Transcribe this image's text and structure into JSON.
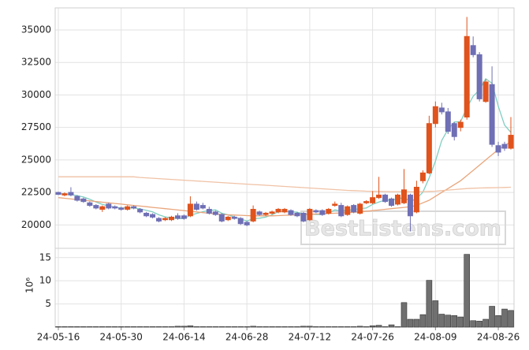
{
  "chart_data": {
    "type": "candlestick",
    "categories": [
      "24-05-16",
      null,
      null,
      null,
      null,
      null,
      null,
      null,
      null,
      null,
      "24-05-30",
      null,
      null,
      null,
      null,
      null,
      null,
      null,
      null,
      null,
      "24-06-14",
      null,
      null,
      null,
      null,
      null,
      null,
      null,
      null,
      null,
      "24-06-28",
      null,
      null,
      null,
      null,
      null,
      null,
      null,
      null,
      null,
      "24-07-12",
      null,
      null,
      null,
      null,
      null,
      null,
      null,
      null,
      null,
      "24-07-26",
      null,
      null,
      null,
      null,
      null,
      null,
      null,
      null,
      null,
      "24-08-09",
      null,
      null,
      null,
      null,
      null,
      null,
      null,
      null,
      null,
      "24-08-26",
      null,
      null
    ],
    "open": [
      22500,
      22300,
      22500,
      22200,
      22000,
      21700,
      21500,
      21200,
      21600,
      21400,
      21300,
      21200,
      21400,
      21200,
      20900,
      20800,
      20500,
      20400,
      20400,
      20700,
      20700,
      20700,
      21600,
      21500,
      21200,
      21000,
      20800,
      20400,
      20600,
      20500,
      20200,
      20300,
      21000,
      20800,
      20900,
      21000,
      21000,
      21100,
      20900,
      20900,
      20400,
      21100,
      21100,
      20900,
      21500,
      21500,
      20800,
      21500,
      20900,
      21700,
      21700,
      22100,
      22300,
      22000,
      21600,
      21700,
      22300,
      21000,
      23400,
      24000,
      27800,
      29000,
      28700,
      27800,
      27500,
      28300,
      33800,
      33100,
      29500,
      30800,
      26100,
      26200,
      25900
    ],
    "high": [
      22550,
      22500,
      22900,
      22300,
      22100,
      21800,
      21600,
      21500,
      21700,
      21500,
      21400,
      21500,
      21500,
      21300,
      21000,
      20900,
      20600,
      20600,
      20700,
      20900,
      20800,
      22200,
      21800,
      21700,
      21400,
      21100,
      20900,
      20700,
      20700,
      20600,
      20300,
      21500,
      21100,
      21000,
      21100,
      21300,
      21300,
      21200,
      21000,
      21000,
      21300,
      21200,
      21200,
      21300,
      21800,
      21700,
      21500,
      21600,
      21700,
      21900,
      22600,
      23700,
      22400,
      22100,
      22400,
      24300,
      22400,
      23400,
      24200,
      28400,
      29500,
      29400,
      29000,
      27900,
      28100,
      36000,
      34500,
      33300,
      31200,
      32200,
      26400,
      26400,
      28300
    ],
    "low": [
      22300,
      22200,
      22200,
      21800,
      21700,
      21400,
      21200,
      21000,
      21200,
      21200,
      21100,
      21100,
      21200,
      20900,
      20600,
      20500,
      20200,
      20300,
      20300,
      20400,
      20400,
      20600,
      21100,
      21200,
      20800,
      20700,
      20200,
      20300,
      20400,
      20000,
      19900,
      20200,
      20700,
      20700,
      20800,
      20900,
      20900,
      20700,
      20600,
      20200,
      20300,
      20900,
      20700,
      20800,
      21400,
      20600,
      20700,
      20900,
      20800,
      21600,
      21600,
      22000,
      21700,
      21400,
      21500,
      21600,
      19500,
      20900,
      23200,
      23900,
      27500,
      28500,
      27000,
      26500,
      27200,
      28100,
      32900,
      29500,
      29400,
      26000,
      25300,
      25700,
      25800
    ],
    "close": [
      22350,
      22400,
      22300,
      21900,
      21800,
      21500,
      21300,
      21400,
      21300,
      21300,
      21200,
      21400,
      21300,
      21000,
      20700,
      20600,
      20300,
      20500,
      20600,
      20500,
      20500,
      21600,
      21200,
      21300,
      20900,
      20800,
      20300,
      20600,
      20500,
      20100,
      20000,
      21200,
      20800,
      20900,
      21000,
      21200,
      21200,
      20800,
      20700,
      20300,
      21200,
      21000,
      20800,
      21200,
      21600,
      20700,
      21400,
      21000,
      21600,
      21800,
      22100,
      22300,
      21800,
      21500,
      22300,
      22700,
      20700,
      22900,
      24000,
      27800,
      29100,
      28700,
      27200,
      26800,
      27900,
      34500,
      33100,
      29700,
      31000,
      26200,
      25600,
      25900,
      26900
    ],
    "up_color": "#e0531c",
    "down_color": "#6f6fb5",
    "lines": [
      {
        "color": "#7fcfc0",
        "values": [
          22400,
          22400,
          22350,
          22250,
          22150,
          21980,
          21760,
          21580,
          21460,
          21360,
          21300,
          21320,
          21300,
          21240,
          21120,
          21000,
          20780,
          20620,
          20540,
          20500,
          20480,
          20740,
          20880,
          21020,
          21100,
          21160,
          20900,
          20780,
          20620,
          20460,
          20300,
          20480,
          20520,
          20600,
          20780,
          21020,
          21020,
          21020,
          20980,
          20840,
          20840,
          20800,
          20800,
          20900,
          21160,
          21060,
          21140,
          21180,
          21260,
          21300,
          21580,
          21760,
          21920,
          21900,
          22000,
          22120,
          21800,
          22020,
          22520,
          23620,
          24900,
          26500,
          27360,
          27920,
          27940,
          29020,
          29900,
          30400,
          31240,
          30900,
          29120,
          27680,
          27120
        ]
      },
      {
        "color": "#e9a57b",
        "values": [
          22100,
          22050,
          22000,
          21950,
          21900,
          21850,
          21800,
          21750,
          21700,
          21650,
          21600,
          21550,
          21500,
          21450,
          21400,
          21350,
          21300,
          21250,
          21200,
          21150,
          21100,
          21050,
          21000,
          20950,
          20900,
          20850,
          20800,
          20780,
          20760,
          20740,
          20720,
          20700,
          20700,
          20700,
          20700,
          20720,
          20740,
          20760,
          20780,
          20800,
          20820,
          20840,
          20860,
          20880,
          20900,
          20920,
          20950,
          20980,
          21000,
          21050,
          21100,
          21150,
          21200,
          21250,
          21300,
          21350,
          21400,
          21500,
          21700,
          21900,
          22200,
          22500,
          22800,
          23100,
          23400,
          23800,
          24200,
          24600,
          25000,
          25400,
          25800,
          26100,
          26400
        ]
      },
      {
        "color": "#f0c2a5",
        "values": [
          23700,
          23700,
          23700,
          23700,
          23700,
          23700,
          23700,
          23700,
          23700,
          23700,
          23700,
          23700,
          23700,
          23650,
          23620,
          23590,
          23560,
          23530,
          23500,
          23470,
          23440,
          23410,
          23380,
          23350,
          23320,
          23290,
          23260,
          23230,
          23200,
          23170,
          23140,
          23110,
          23080,
          23050,
          23020,
          22990,
          22960,
          22930,
          22900,
          22870,
          22840,
          22810,
          22780,
          22750,
          22720,
          22690,
          22660,
          22640,
          22620,
          22600,
          22590,
          22580,
          22570,
          22560,
          22560,
          22560,
          22550,
          22550,
          22560,
          22580,
          22600,
          22640,
          22680,
          22720,
          22760,
          22800,
          22820,
          22840,
          22850,
          22860,
          22870,
          22880,
          22900
        ]
      }
    ],
    "ylim": [
      18200,
      36700
    ],
    "yticks": [
      20000,
      22500,
      25000,
      27500,
      30000,
      32500,
      35000
    ],
    "grid": true,
    "volume": {
      "values": [
        0.1,
        0.1,
        0.1,
        0.1,
        0.1,
        0.1,
        0.1,
        0.1,
        0.1,
        0.1,
        0.1,
        0.1,
        0.1,
        0.1,
        0.1,
        0.1,
        0.1,
        0.1,
        0.1,
        0.2,
        0.2,
        0.3,
        0.1,
        0.1,
        0.1,
        0.1,
        0.1,
        0.1,
        0.1,
        0.1,
        0.1,
        0.2,
        0.1,
        0.1,
        0.1,
        0.1,
        0.1,
        0.1,
        0.1,
        0.2,
        0.2,
        0.1,
        0.1,
        0.1,
        0.1,
        0.1,
        0.1,
        0.1,
        0.2,
        0.1,
        0.3,
        0.4,
        0.1,
        0.5,
        0.1,
        5.3,
        1.7,
        1.7,
        2.7,
        10.1,
        5.7,
        2.8,
        2.6,
        2.5,
        2.2,
        15.7,
        1.4,
        1.3,
        1.7,
        4.5,
        2.5,
        3.9,
        3.6
      ],
      "color": "#707070",
      "ylim": [
        0,
        17
      ],
      "yticks": [
        5,
        10,
        15
      ],
      "ylabel": "10⁶"
    },
    "watermark": "BestListens.com"
  }
}
